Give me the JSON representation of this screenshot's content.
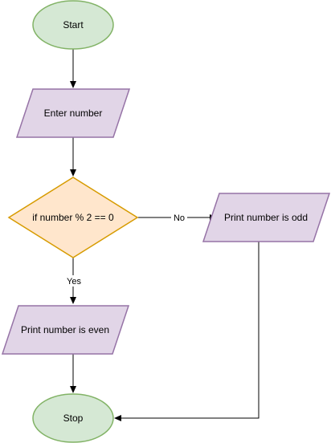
{
  "flowchart": {
    "nodes": {
      "start": {
        "label": "Start",
        "shape": "ellipse",
        "fill": "#d5e8d4",
        "stroke": "#82b366"
      },
      "input": {
        "label": "Enter number",
        "shape": "parallelogram",
        "fill": "#e1d5e7",
        "stroke": "#9673a6"
      },
      "decision": {
        "label": "if number % 2 == 0",
        "shape": "diamond",
        "fill": "#ffe6cc",
        "stroke": "#d79b00"
      },
      "print_odd": {
        "label": "Print number is odd",
        "shape": "parallelogram",
        "fill": "#e1d5e7",
        "stroke": "#9673a6"
      },
      "print_even": {
        "label": "Print number is even",
        "shape": "parallelogram",
        "fill": "#e1d5e7",
        "stroke": "#9673a6"
      },
      "stop": {
        "label": "Stop",
        "shape": "ellipse",
        "fill": "#d5e8d4",
        "stroke": "#82b366"
      }
    },
    "edges": {
      "no_label": "No",
      "yes_label": "Yes"
    },
    "edge_color": "#000000"
  }
}
